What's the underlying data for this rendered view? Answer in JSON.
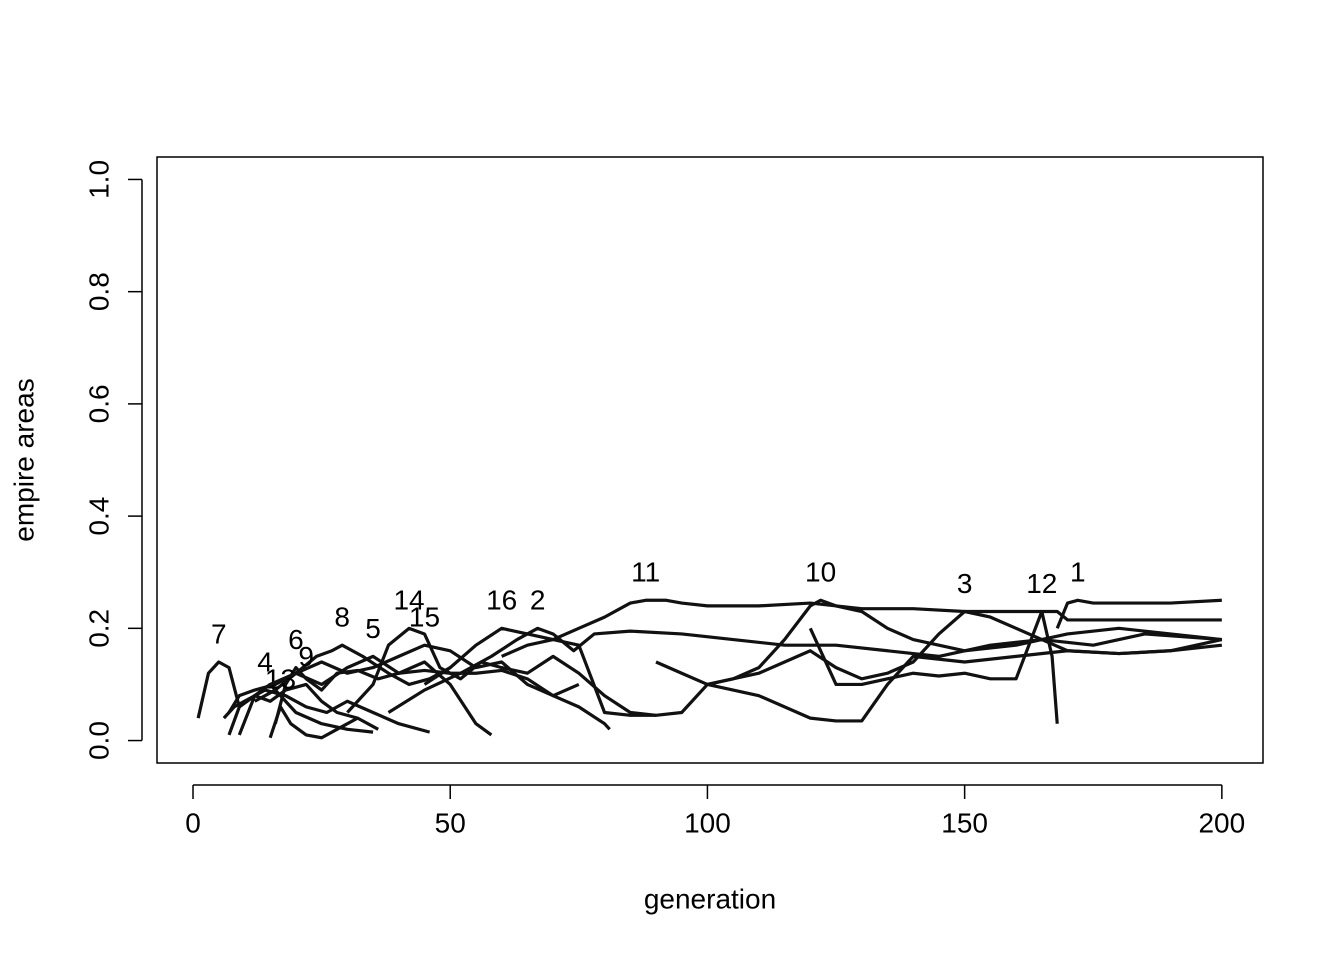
{
  "chart_data": {
    "type": "line",
    "x_label": "generation",
    "y_label": "empire areas",
    "xlim": [
      -7,
      208
    ],
    "ylim": [
      -0.04,
      1.04
    ],
    "xticks": [
      0,
      50,
      100,
      150,
      200
    ],
    "yticks": [
      {
        "value": 0,
        "label": "0.0"
      },
      {
        "value": 0.2,
        "label": "0.2"
      },
      {
        "value": 0.4,
        "label": "0.4"
      },
      {
        "value": 0.6,
        "label": "0.6"
      },
      {
        "value": 0.8,
        "label": "0.8"
      },
      {
        "value": 1,
        "label": "1.0"
      }
    ],
    "color": "#111111",
    "series": [
      {
        "name": "1",
        "x": [
          168,
          170,
          172,
          175,
          180,
          190,
          200
        ],
        "values": [
          0.2,
          0.245,
          0.25,
          0.245,
          0.245,
          0.245,
          0.25
        ]
      },
      {
        "name": "2",
        "x": [
          38,
          45,
          52,
          58,
          63,
          67,
          70,
          74,
          78,
          85,
          95,
          105,
          115,
          125,
          135,
          145,
          155,
          165,
          175,
          185,
          200
        ],
        "values": [
          0.05,
          0.09,
          0.12,
          0.15,
          0.18,
          0.2,
          0.19,
          0.16,
          0.19,
          0.195,
          0.19,
          0.18,
          0.17,
          0.17,
          0.16,
          0.15,
          0.17,
          0.18,
          0.17,
          0.19,
          0.18
        ]
      },
      {
        "name": "3",
        "x": [
          100,
          110,
          120,
          125,
          130,
          135,
          140,
          145,
          150,
          155,
          160,
          165,
          170,
          180,
          190,
          200
        ],
        "values": [
          0.1,
          0.12,
          0.16,
          0.13,
          0.11,
          0.12,
          0.14,
          0.19,
          0.23,
          0.22,
          0.2,
          0.18,
          0.16,
          0.155,
          0.16,
          0.17
        ]
      },
      {
        "name": "4",
        "x": [
          6,
          8,
          10,
          14,
          18,
          22,
          26,
          30,
          35,
          40,
          46
        ],
        "values": [
          0.04,
          0.06,
          0.07,
          0.09,
          0.08,
          0.06,
          0.05,
          0.07,
          0.05,
          0.03,
          0.015
        ]
      },
      {
        "name": "5",
        "x": [
          7,
          9,
          12,
          16,
          20,
          25,
          30,
          35,
          40,
          45,
          50,
          55,
          58
        ],
        "values": [
          0.05,
          0.08,
          0.09,
          0.1,
          0.12,
          0.1,
          0.13,
          0.15,
          0.12,
          0.14,
          0.1,
          0.03,
          0.01
        ]
      },
      {
        "name": "6",
        "x": [
          16,
          18,
          20,
          22,
          25,
          28,
          32,
          36,
          40,
          45,
          50,
          55,
          60,
          65,
          70,
          75
        ],
        "values": [
          0.03,
          0.1,
          0.13,
          0.11,
          0.09,
          0.12,
          0.125,
          0.11,
          0.12,
          0.125,
          0.12,
          0.12,
          0.125,
          0.11,
          0.08,
          0.1
        ]
      },
      {
        "name": "7",
        "x": [
          1,
          3,
          5,
          7,
          9,
          12,
          15,
          20,
          25,
          30,
          35
        ],
        "values": [
          0.04,
          0.12,
          0.14,
          0.13,
          0.06,
          0.08,
          0.1,
          0.05,
          0.03,
          0.02,
          0.015
        ]
      },
      {
        "name": "8",
        "x": [
          12,
          16,
          20,
          24,
          27,
          29,
          33,
          38,
          42,
          46,
          50
        ],
        "values": [
          0.07,
          0.09,
          0.12,
          0.15,
          0.16,
          0.17,
          0.15,
          0.12,
          0.1,
          0.11,
          0.13
        ]
      },
      {
        "name": "9",
        "x": [
          7,
          9,
          12,
          15,
          18,
          22,
          25,
          28,
          32,
          36
        ],
        "values": [
          0.01,
          0.06,
          0.08,
          0.07,
          0.09,
          0.1,
          0.07,
          0.05,
          0.04,
          0.02
        ]
      },
      {
        "name": "10",
        "x": [
          90,
          95,
          100,
          105,
          110,
          115,
          120,
          122,
          125,
          130,
          135,
          140,
          145,
          150,
          160,
          170,
          180,
          190,
          200
        ],
        "values": [
          0.14,
          0.12,
          0.1,
          0.11,
          0.13,
          0.18,
          0.24,
          0.25,
          0.24,
          0.23,
          0.2,
          0.18,
          0.17,
          0.16,
          0.17,
          0.19,
          0.2,
          0.19,
          0.18
        ]
      },
      {
        "name": "11",
        "x": [
          60,
          65,
          70,
          75,
          80,
          85,
          88,
          92,
          95,
          100,
          110,
          120,
          130,
          140,
          150,
          160,
          168,
          170,
          180,
          190,
          200
        ],
        "values": [
          0.15,
          0.17,
          0.18,
          0.2,
          0.22,
          0.245,
          0.25,
          0.25,
          0.245,
          0.24,
          0.24,
          0.245,
          0.235,
          0.235,
          0.23,
          0.23,
          0.23,
          0.215,
          0.215,
          0.215,
          0.215
        ]
      },
      {
        "name": "12",
        "x": [
          120,
          125,
          130,
          135,
          140,
          145,
          150,
          155,
          160,
          165,
          167,
          168
        ],
        "values": [
          0.2,
          0.1,
          0.1,
          0.11,
          0.12,
          0.115,
          0.12,
          0.11,
          0.11,
          0.23,
          0.15,
          0.03
        ]
      },
      {
        "name": "13",
        "x": [
          15,
          17,
          19,
          22,
          25,
          28,
          32
        ],
        "values": [
          0.005,
          0.06,
          0.03,
          0.01,
          0.005,
          0.02,
          0.04
        ]
      },
      {
        "name": "14",
        "x": [
          30,
          35,
          38,
          42,
          45,
          48,
          52,
          56,
          60,
          65,
          70,
          75,
          80,
          85,
          90
        ],
        "values": [
          0.05,
          0.1,
          0.17,
          0.2,
          0.19,
          0.13,
          0.11,
          0.14,
          0.13,
          0.12,
          0.15,
          0.12,
          0.08,
          0.05,
          0.045
        ]
      },
      {
        "name": "15",
        "x": [
          9,
          12,
          15,
          20,
          25,
          30,
          35,
          40,
          45,
          50,
          55,
          60,
          65,
          70,
          75,
          80,
          81
        ],
        "values": [
          0.01,
          0.08,
          0.1,
          0.12,
          0.14,
          0.12,
          0.13,
          0.15,
          0.17,
          0.16,
          0.13,
          0.14,
          0.1,
          0.08,
          0.06,
          0.03,
          0.02
        ]
      },
      {
        "name": "16",
        "x": [
          45,
          50,
          55,
          60,
          65,
          70,
          75,
          80,
          85,
          90,
          95,
          100,
          110,
          120,
          125,
          130,
          135,
          140,
          150,
          160,
          170,
          180,
          190,
          200
        ],
        "values": [
          0.1,
          0.13,
          0.17,
          0.2,
          0.19,
          0.18,
          0.17,
          0.05,
          0.045,
          0.045,
          0.05,
          0.1,
          0.08,
          0.04,
          0.035,
          0.035,
          0.1,
          0.15,
          0.14,
          0.15,
          0.16,
          0.155,
          0.16,
          0.18
        ]
      }
    ]
  }
}
